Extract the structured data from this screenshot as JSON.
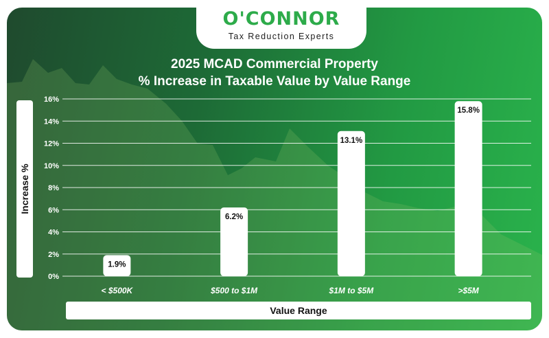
{
  "logo": {
    "brand": "O'CONNOR",
    "tagline": "Tax Reduction Experts"
  },
  "colors": {
    "brand_green": "#2dab4a",
    "bar": "#ffffff",
    "background_dark": "#1f4a2e",
    "background_light": "#2ab34c"
  },
  "chart_data": {
    "type": "bar",
    "title_line1": "2025 MCAD Commercial Property",
    "title_line2": "% Increase in Taxable Value by Value Range",
    "xlabel": "Value Range",
    "ylabel": "Increase %",
    "categories": [
      "< $500K",
      "$500 to $1M",
      "$1M to $5M",
      ">$5M"
    ],
    "values": [
      1.9,
      6.2,
      13.1,
      15.8
    ],
    "value_labels": [
      "1.9%",
      "6.2%",
      "13.1%",
      "15.8%"
    ],
    "ylim": [
      0,
      16
    ],
    "yticks": [
      0,
      2,
      4,
      6,
      8,
      10,
      12,
      14,
      16
    ],
    "ytick_labels": [
      "0%",
      "2%",
      "4%",
      "6%",
      "8%",
      "10%",
      "12%",
      "14%",
      "16%"
    ],
    "grid": true,
    "legend": "none"
  }
}
